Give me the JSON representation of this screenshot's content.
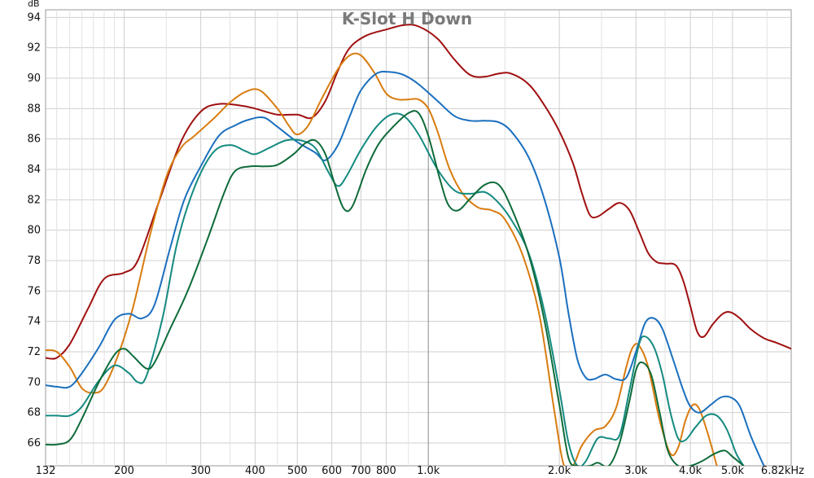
{
  "chart_data": {
    "type": "line",
    "title": "K-Slot H Down",
    "ylabel": "dB",
    "x_unit": "kHz",
    "x_scale": "log",
    "xlim": [
      132,
      6820
    ],
    "ylim": [
      64.5,
      94.5
    ],
    "grid": true,
    "y_ticks": [
      66,
      68,
      70,
      72,
      74,
      76,
      78,
      80,
      82,
      84,
      86,
      88,
      90,
      92,
      94
    ],
    "x_ticks": [
      {
        "value": 132,
        "label": "132"
      },
      {
        "value": 200,
        "label": "200"
      },
      {
        "value": 300,
        "label": "300"
      },
      {
        "value": 400,
        "label": "400"
      },
      {
        "value": 500,
        "label": "500"
      },
      {
        "value": 600,
        "label": "600"
      },
      {
        "value": 700,
        "label": "700"
      },
      {
        "value": 800,
        "label": "800"
      },
      {
        "value": 1000,
        "label": "1.0k"
      },
      {
        "value": 2000,
        "label": "2.0k"
      },
      {
        "value": 3000,
        "label": "3.0k"
      },
      {
        "value": 4000,
        "label": "4.0k"
      },
      {
        "value": 5000,
        "label": "5.0k"
      },
      {
        "value": 6820,
        "label": "6.82kHz"
      }
    ],
    "x_minor_grid": [
      140,
      150,
      160,
      170,
      180,
      190,
      250,
      350,
      450,
      900,
      1500,
      2500,
      3500,
      4500,
      6000
    ],
    "series": [
      {
        "color": "#a01010",
        "points": [
          [
            132,
            71.6
          ],
          [
            140,
            71.6
          ],
          [
            150,
            72.5
          ],
          [
            165,
            74.8
          ],
          [
            180,
            76.8
          ],
          [
            200,
            77.2
          ],
          [
            215,
            78.0
          ],
          [
            240,
            81.8
          ],
          [
            270,
            85.8
          ],
          [
            300,
            87.8
          ],
          [
            330,
            88.3
          ],
          [
            370,
            88.2
          ],
          [
            400,
            88.0
          ],
          [
            450,
            87.6
          ],
          [
            500,
            87.6
          ],
          [
            540,
            87.4
          ],
          [
            580,
            88.5
          ],
          [
            620,
            90.5
          ],
          [
            660,
            92.0
          ],
          [
            720,
            92.8
          ],
          [
            800,
            93.2
          ],
          [
            880,
            93.5
          ],
          [
            950,
            93.4
          ],
          [
            1050,
            92.6
          ],
          [
            1150,
            91.2
          ],
          [
            1250,
            90.2
          ],
          [
            1350,
            90.1
          ],
          [
            1450,
            90.3
          ],
          [
            1550,
            90.3
          ],
          [
            1700,
            89.6
          ],
          [
            1850,
            88.2
          ],
          [
            2000,
            86.5
          ],
          [
            2150,
            84.4
          ],
          [
            2250,
            82.5
          ],
          [
            2350,
            81.0
          ],
          [
            2450,
            80.9
          ],
          [
            2600,
            81.4
          ],
          [
            2750,
            81.8
          ],
          [
            2900,
            81.3
          ],
          [
            3050,
            79.9
          ],
          [
            3200,
            78.5
          ],
          [
            3350,
            77.9
          ],
          [
            3500,
            77.8
          ],
          [
            3700,
            77.7
          ],
          [
            3850,
            76.7
          ],
          [
            4000,
            75.0
          ],
          [
            4150,
            73.3
          ],
          [
            4300,
            73.0
          ],
          [
            4500,
            73.8
          ],
          [
            4750,
            74.5
          ],
          [
            4950,
            74.6
          ],
          [
            5200,
            74.2
          ],
          [
            5500,
            73.5
          ],
          [
            5900,
            72.9
          ],
          [
            6300,
            72.6
          ],
          [
            6820,
            72.2
          ]
        ]
      },
      {
        "color": "#d87c10",
        "points": [
          [
            132,
            72.1
          ],
          [
            140,
            72.0
          ],
          [
            150,
            71.0
          ],
          [
            160,
            69.6
          ],
          [
            170,
            69.3
          ],
          [
            180,
            69.7
          ],
          [
            195,
            72.0
          ],
          [
            210,
            75.0
          ],
          [
            230,
            79.8
          ],
          [
            250,
            83.5
          ],
          [
            270,
            85.4
          ],
          [
            290,
            86.2
          ],
          [
            320,
            87.3
          ],
          [
            350,
            88.4
          ],
          [
            380,
            89.1
          ],
          [
            410,
            89.2
          ],
          [
            450,
            88.0
          ],
          [
            480,
            86.8
          ],
          [
            500,
            86.3
          ],
          [
            530,
            86.9
          ],
          [
            570,
            88.7
          ],
          [
            620,
            90.6
          ],
          [
            660,
            91.5
          ],
          [
            700,
            91.5
          ],
          [
            750,
            90.4
          ],
          [
            800,
            89.0
          ],
          [
            850,
            88.6
          ],
          [
            900,
            88.6
          ],
          [
            950,
            88.6
          ],
          [
            1000,
            88.0
          ],
          [
            1050,
            86.5
          ],
          [
            1120,
            84.0
          ],
          [
            1200,
            82.4
          ],
          [
            1300,
            81.5
          ],
          [
            1400,
            81.3
          ],
          [
            1500,
            80.7
          ],
          [
            1650,
            78.3
          ],
          [
            1800,
            74.4
          ],
          [
            1950,
            68.0
          ],
          [
            2050,
            64.5
          ],
          [
            2150,
            64.5
          ],
          [
            2250,
            65.8
          ],
          [
            2400,
            66.8
          ],
          [
            2550,
            67.1
          ],
          [
            2700,
            68.3
          ],
          [
            2850,
            71.0
          ],
          [
            2950,
            72.3
          ],
          [
            3050,
            72.4
          ],
          [
            3200,
            71.0
          ],
          [
            3400,
            67.5
          ],
          [
            3600,
            65.3
          ],
          [
            3750,
            65.7
          ],
          [
            3900,
            67.5
          ],
          [
            4050,
            68.5
          ],
          [
            4200,
            68.2
          ],
          [
            4400,
            66.5
          ],
          [
            4600,
            64.5
          ]
        ]
      },
      {
        "color": "#1a6fbe",
        "points": [
          [
            132,
            69.8
          ],
          [
            140,
            69.7
          ],
          [
            150,
            69.7
          ],
          [
            160,
            70.6
          ],
          [
            175,
            72.3
          ],
          [
            190,
            74.1
          ],
          [
            205,
            74.5
          ],
          [
            220,
            74.2
          ],
          [
            235,
            75.1
          ],
          [
            255,
            78.8
          ],
          [
            275,
            82.0
          ],
          [
            300,
            84.2
          ],
          [
            330,
            86.2
          ],
          [
            360,
            86.9
          ],
          [
            390,
            87.3
          ],
          [
            420,
            87.4
          ],
          [
            450,
            86.8
          ],
          [
            500,
            85.8
          ],
          [
            550,
            85.1
          ],
          [
            580,
            84.6
          ],
          [
            620,
            85.6
          ],
          [
            660,
            87.5
          ],
          [
            700,
            89.2
          ],
          [
            760,
            90.3
          ],
          [
            820,
            90.4
          ],
          [
            880,
            90.2
          ],
          [
            950,
            89.6
          ],
          [
            1050,
            88.5
          ],
          [
            1150,
            87.5
          ],
          [
            1250,
            87.2
          ],
          [
            1350,
            87.2
          ],
          [
            1450,
            87.1
          ],
          [
            1550,
            86.5
          ],
          [
            1700,
            84.8
          ],
          [
            1850,
            82.0
          ],
          [
            2000,
            78.2
          ],
          [
            2100,
            74.5
          ],
          [
            2200,
            71.5
          ],
          [
            2300,
            70.3
          ],
          [
            2400,
            70.2
          ],
          [
            2550,
            70.5
          ],
          [
            2700,
            70.2
          ],
          [
            2850,
            70.3
          ],
          [
            3000,
            72.0
          ],
          [
            3150,
            73.9
          ],
          [
            3300,
            74.2
          ],
          [
            3450,
            73.5
          ],
          [
            3650,
            71.5
          ],
          [
            3850,
            69.5
          ],
          [
            4000,
            68.4
          ],
          [
            4200,
            68.0
          ],
          [
            4450,
            68.5
          ],
          [
            4700,
            69.0
          ],
          [
            4950,
            69.0
          ],
          [
            5200,
            68.4
          ],
          [
            5500,
            66.5
          ],
          [
            5900,
            64.5
          ]
        ]
      },
      {
        "color": "#148a80",
        "points": [
          [
            132,
            67.8
          ],
          [
            140,
            67.8
          ],
          [
            150,
            67.8
          ],
          [
            160,
            68.4
          ],
          [
            175,
            70.1
          ],
          [
            190,
            71.1
          ],
          [
            205,
            70.6
          ],
          [
            215,
            70.0
          ],
          [
            225,
            70.4
          ],
          [
            245,
            74.2
          ],
          [
            265,
            79.2
          ],
          [
            290,
            82.8
          ],
          [
            320,
            85.1
          ],
          [
            350,
            85.6
          ],
          [
            380,
            85.2
          ],
          [
            400,
            85.0
          ],
          [
            430,
            85.4
          ],
          [
            470,
            85.9
          ],
          [
            510,
            85.9
          ],
          [
            550,
            85.4
          ],
          [
            590,
            83.8
          ],
          [
            620,
            82.9
          ],
          [
            650,
            83.6
          ],
          [
            700,
            85.3
          ],
          [
            760,
            86.8
          ],
          [
            820,
            87.6
          ],
          [
            880,
            87.5
          ],
          [
            950,
            86.3
          ],
          [
            1050,
            84.0
          ],
          [
            1150,
            82.6
          ],
          [
            1250,
            82.4
          ],
          [
            1350,
            82.5
          ],
          [
            1450,
            81.8
          ],
          [
            1550,
            80.7
          ],
          [
            1700,
            78.5
          ],
          [
            1850,
            74.6
          ],
          [
            2000,
            69.5
          ],
          [
            2100,
            66.0
          ],
          [
            2200,
            64.5
          ],
          [
            2300,
            64.8
          ],
          [
            2450,
            66.3
          ],
          [
            2600,
            66.3
          ],
          [
            2750,
            66.5
          ],
          [
            2900,
            69.5
          ],
          [
            3050,
            72.5
          ],
          [
            3150,
            73.0
          ],
          [
            3300,
            72.3
          ],
          [
            3450,
            70.5
          ],
          [
            3600,
            68.0
          ],
          [
            3750,
            66.3
          ],
          [
            3900,
            66.2
          ],
          [
            4100,
            67.0
          ],
          [
            4350,
            67.8
          ],
          [
            4600,
            67.8
          ],
          [
            4850,
            66.9
          ],
          [
            5100,
            65.3
          ],
          [
            5300,
            64.5
          ]
        ]
      },
      {
        "color": "#0e6b3a",
        "points": [
          [
            132,
            65.9
          ],
          [
            140,
            65.9
          ],
          [
            150,
            66.2
          ],
          [
            160,
            67.6
          ],
          [
            175,
            70.0
          ],
          [
            190,
            71.8
          ],
          [
            200,
            72.2
          ],
          [
            210,
            71.7
          ],
          [
            225,
            70.9
          ],
          [
            235,
            71.3
          ],
          [
            255,
            73.5
          ],
          [
            280,
            76.0
          ],
          [
            310,
            79.3
          ],
          [
            340,
            82.5
          ],
          [
            360,
            83.9
          ],
          [
            390,
            84.2
          ],
          [
            420,
            84.2
          ],
          [
            450,
            84.3
          ],
          [
            490,
            85.0
          ],
          [
            520,
            85.7
          ],
          [
            550,
            85.9
          ],
          [
            580,
            85.0
          ],
          [
            610,
            83.0
          ],
          [
            640,
            81.4
          ],
          [
            670,
            81.6
          ],
          [
            720,
            84.0
          ],
          [
            770,
            85.7
          ],
          [
            830,
            86.8
          ],
          [
            900,
            87.7
          ],
          [
            950,
            87.7
          ],
          [
            1000,
            86.2
          ],
          [
            1060,
            83.5
          ],
          [
            1110,
            81.7
          ],
          [
            1170,
            81.3
          ],
          [
            1250,
            82.1
          ],
          [
            1350,
            83.0
          ],
          [
            1450,
            83.0
          ],
          [
            1550,
            81.5
          ],
          [
            1700,
            78.4
          ],
          [
            1850,
            74.0
          ],
          [
            2000,
            68.5
          ],
          [
            2100,
            65.0
          ],
          [
            2200,
            64.5
          ],
          [
            2350,
            64.5
          ],
          [
            2450,
            64.7
          ],
          [
            2600,
            64.5
          ],
          [
            2750,
            66.0
          ],
          [
            2900,
            68.8
          ],
          [
            3000,
            70.8
          ],
          [
            3100,
            71.3
          ],
          [
            3250,
            70.5
          ],
          [
            3400,
            68.0
          ],
          [
            3550,
            65.5
          ],
          [
            3750,
            64.5
          ],
          [
            4000,
            64.5
          ],
          [
            4250,
            64.8
          ],
          [
            4550,
            65.3
          ],
          [
            4800,
            65.5
          ],
          [
            5000,
            65.1
          ],
          [
            5300,
            64.5
          ]
        ]
      }
    ]
  }
}
